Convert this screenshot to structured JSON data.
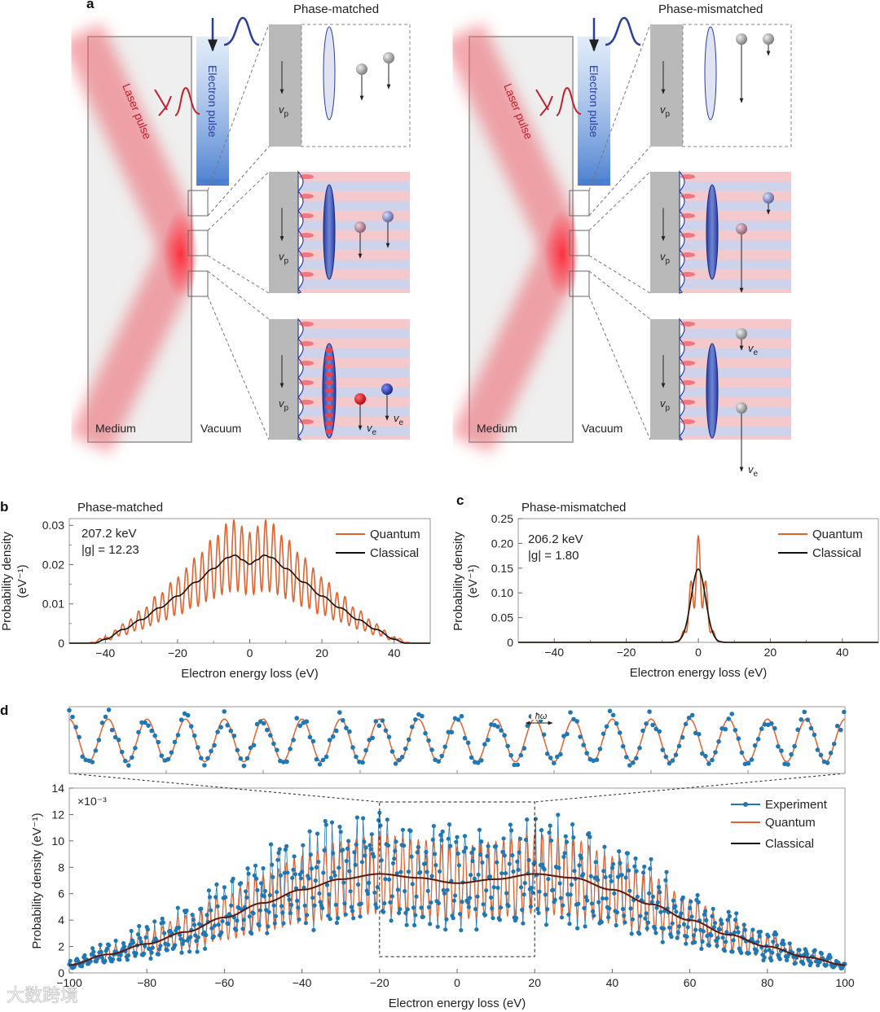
{
  "panel_labels": {
    "a": "a",
    "b": "b",
    "c": "c",
    "d": "d"
  },
  "schematic": {
    "left_title": "Phase-matched",
    "right_title": "Phase-mismatched",
    "laser_label": "Laser pulse",
    "electron_label": "Electron pulse",
    "medium_label": "Medium",
    "vacuum_label": "Vacuum",
    "vp_label": "v",
    "vp_sub": "p",
    "ve_label": "v",
    "ve_sub": "e",
    "colors": {
      "laser": "#e8434f",
      "electron": "#2a3f9d",
      "medium": "#efefef",
      "wall": "#b9b9b9",
      "stripe_red": "#f3c9cc",
      "stripe_blue": "#cdd3ea"
    }
  },
  "chart_data": [
    {
      "id": "b",
      "type": "line",
      "title": "Phase-matched",
      "xlabel": "Electron energy loss (eV)",
      "ylabel": "Probability density",
      "ylabel_unit": "(eV⁻¹)",
      "xlim": [
        -50,
        50
      ],
      "ylim": [
        0,
        0.0317
      ],
      "xticks": [
        -40,
        -20,
        0,
        20,
        40
      ],
      "xtick_labels": [
        "−40",
        "−20",
        "0",
        "20",
        "40"
      ],
      "yticks": [
        0,
        0.01,
        0.02,
        0.03
      ],
      "ytick_labels": [
        "0",
        "0.01",
        "0.02",
        "0.03"
      ],
      "annotation": [
        "207.2 keV",
        "|g| = 12.23"
      ],
      "legend": {
        "position": "top-right",
        "entries": [
          "Quantum",
          "Classical"
        ]
      },
      "classical": {
        "x": [
          -50,
          -43,
          -40,
          -35,
          -30,
          -25,
          -20,
          -15,
          -10,
          -6,
          -4,
          -2,
          0,
          2,
          4,
          6,
          10,
          15,
          20,
          25,
          30,
          35,
          40,
          43,
          50
        ],
        "y": [
          0,
          0,
          0.001,
          0.0035,
          0.006,
          0.009,
          0.012,
          0.0155,
          0.019,
          0.0218,
          0.0224,
          0.0212,
          0.0201,
          0.0212,
          0.0224,
          0.0218,
          0.019,
          0.0155,
          0.012,
          0.009,
          0.006,
          0.0035,
          0.001,
          0,
          0
        ]
      },
      "quantum": {
        "period_eV": 2.2,
        "modulation": 0.4,
        "tail_eV": 45
      },
      "series_colors": {
        "Quantum": "#e0622d",
        "Classical": "#111111"
      }
    },
    {
      "id": "c",
      "type": "line",
      "title": "Phase-mismatched",
      "xlabel": "Electron energy loss (eV)",
      "ylabel": "Probability density",
      "ylabel_unit": "(eV⁻¹)",
      "xlim": [
        -50,
        50
      ],
      "ylim": [
        0,
        0.25
      ],
      "xticks": [
        -40,
        -20,
        0,
        20,
        40
      ],
      "xtick_labels": [
        "−40",
        "−20",
        "0",
        "20",
        "40"
      ],
      "yticks": [
        0,
        0.05,
        0.1,
        0.15,
        0.2,
        0.25
      ],
      "ytick_labels": [
        "0",
        "0.05",
        "0.10",
        "0.15",
        "0.20",
        "0.25"
      ],
      "annotation": [
        "206.2 keV",
        "|g| = 1.80"
      ],
      "legend": {
        "position": "top-right",
        "entries": [
          "Quantum",
          "Classical"
        ]
      },
      "classical": {
        "peak": 0.148,
        "center": 0,
        "sigma_eV": 2.0
      },
      "quantum": {
        "period_eV": 2.2,
        "modulation": 0.45
      },
      "series_colors": {
        "Quantum": "#e0622d",
        "Classical": "#111111"
      }
    },
    {
      "id": "d",
      "type": "line",
      "xlabel": "Electron energy loss (eV)",
      "ylabel": "Probability density (eV⁻¹)",
      "y_multiplier": "×10⁻³",
      "xlim": [
        -100,
        100
      ],
      "ylim": [
        0,
        14
      ],
      "xticks": [
        -100,
        -80,
        -60,
        -40,
        -20,
        0,
        20,
        40,
        60,
        80,
        100
      ],
      "xtick_labels": [
        "−100",
        "−80",
        "−60",
        "−40",
        "−20",
        "0",
        "20",
        "40",
        "60",
        "80",
        "100"
      ],
      "yticks": [
        0,
        2,
        4,
        6,
        8,
        10,
        12,
        14
      ],
      "ytick_labels": [
        "0",
        "2",
        "4",
        "6",
        "8",
        "10",
        "12",
        "14"
      ],
      "legend": {
        "position": "top-right",
        "entries": [
          "Experiment",
          "Quantum",
          "Classical"
        ]
      },
      "classical": {
        "x": [
          -100,
          -90,
          -80,
          -70,
          -60,
          -50,
          -40,
          -30,
          -20,
          -10,
          0,
          10,
          20,
          30,
          40,
          50,
          60,
          70,
          80,
          90,
          100
        ],
        "y": [
          0.6,
          1.4,
          2.2,
          3.1,
          4.2,
          5.3,
          6.3,
          7.1,
          7.5,
          7.2,
          6.8,
          7.1,
          7.5,
          7.2,
          6.3,
          5.2,
          4.0,
          2.9,
          2.0,
          1.2,
          0.6
        ]
      },
      "quantum": {
        "period_eV": 2.0,
        "modulation": 0.4
      },
      "experiment": {
        "sample_step_eV": 0.25,
        "relative_noise": 0.22
      },
      "zoom_window_eV": [
        -20,
        20
      ],
      "inset_annotation": "ħω",
      "series_colors": {
        "Experiment": "#1f77b4",
        "Quantum": "#e0622d",
        "Classical": "#111111"
      }
    }
  ],
  "watermark": "大数跨境"
}
